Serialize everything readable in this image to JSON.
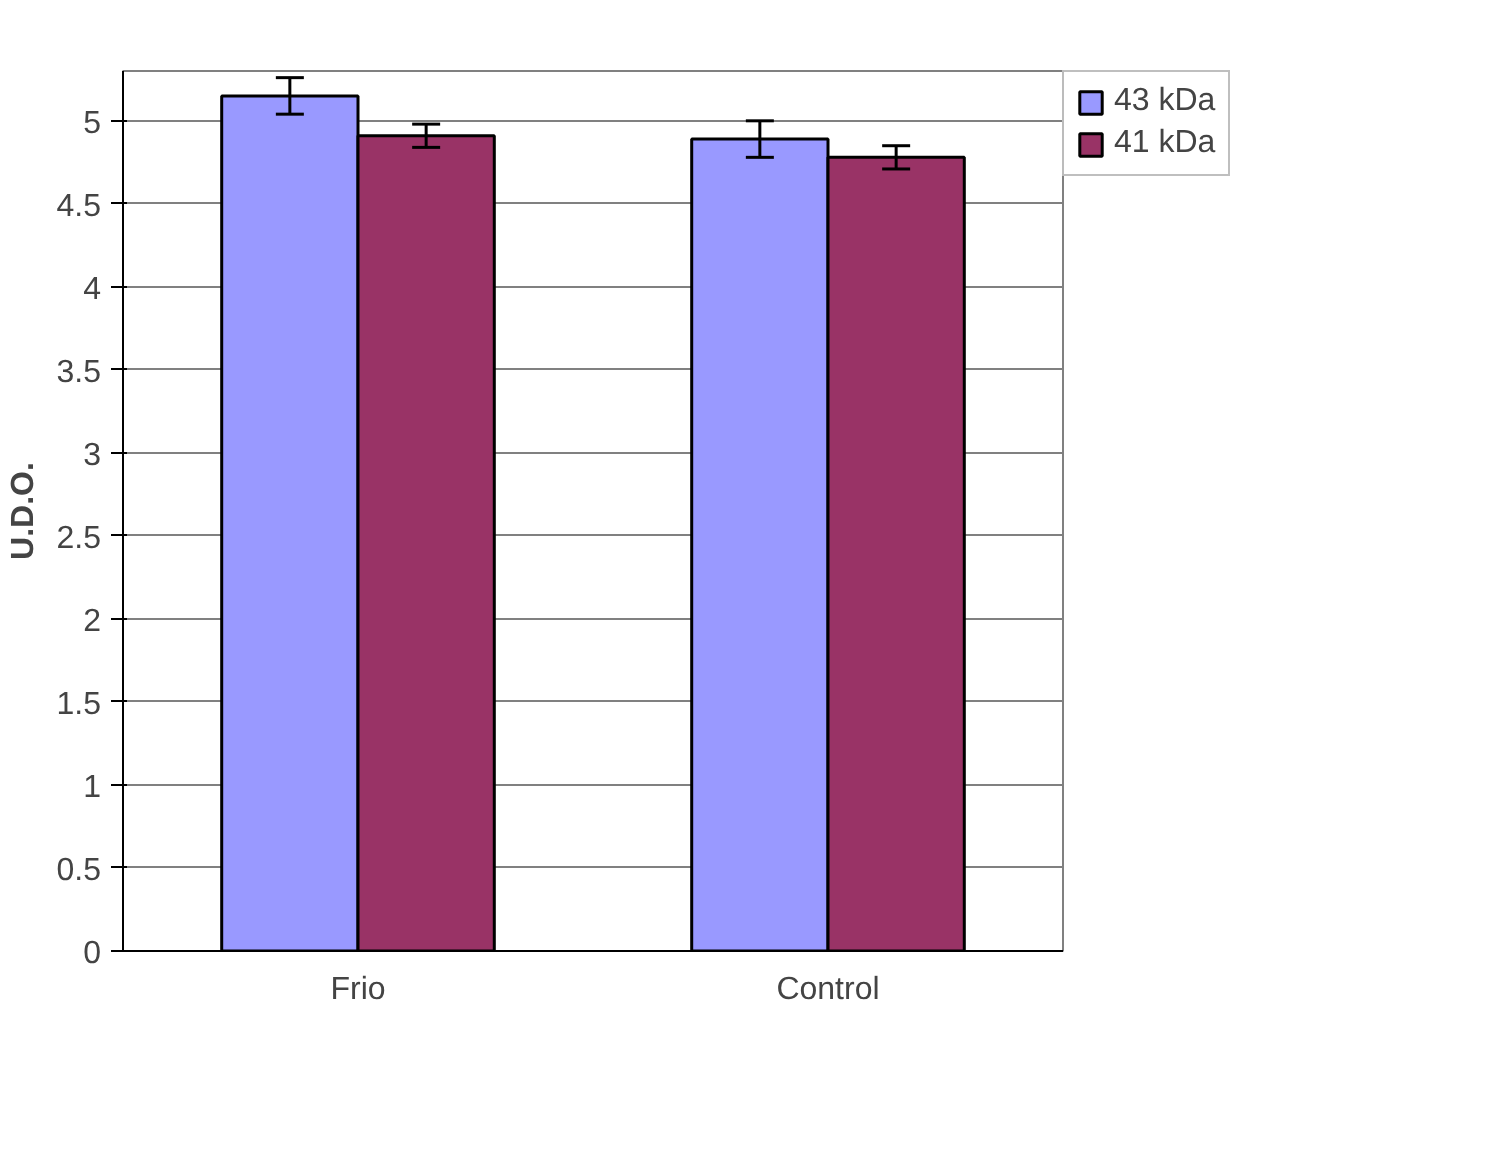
{
  "chart_data": {
    "type": "bar",
    "ylabel": "U.D.O.",
    "categories": [
      "Frio",
      "Control"
    ],
    "series": [
      {
        "name": "43 kDa",
        "color": "#9999ff",
        "values": [
          5.15,
          4.89
        ],
        "errors": [
          0.11,
          0.11
        ]
      },
      {
        "name": "41 kDa",
        "color": "#993366",
        "values": [
          4.91,
          4.78
        ],
        "errors": [
          0.07,
          0.07
        ]
      }
    ],
    "ylim": [
      0,
      5.3
    ],
    "yticks": [
      0,
      0.5,
      1,
      1.5,
      2,
      2.5,
      3,
      3.5,
      4,
      4.5,
      5
    ],
    "grid": "y",
    "legend": "right"
  }
}
